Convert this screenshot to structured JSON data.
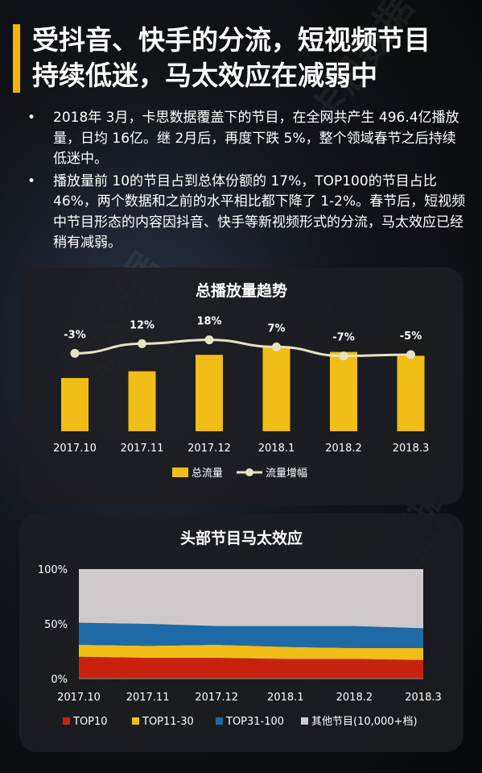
{
  "title": {
    "line1": "受抖音、快手的分流，短视频节目",
    "line2": "持续低迷，马太效应在减弱中"
  },
  "bullets": [
    "2018年 3月，卡思数据覆盖下的节目，在全网共产生 496.4亿播放量，日均 16亿。继 2月后，再度下跌 5%，整个领域春节之后持续低迷中。",
    "播放量前 10的节目占到总体份额的 17%，TOP100的节目占比 46%，两个数据和之前的水平相比都下降了 1-2%。春节后，短视频中节目形态的内容因抖音、快手等新视频形式的分流，马太效应已经稍有减弱。"
  ],
  "bullet_symbol": "•",
  "watermarks": [
    "卡思数据",
    "CAASDATA"
  ],
  "colors": {
    "accent": "#f5b400",
    "bar": "#f0be16",
    "line": "#e6e2c4",
    "top10": "#c8220f",
    "top11_30": "#f0be16",
    "top31_100": "#1e6aa6",
    "others": "#cfc9cc"
  },
  "chart_data": [
    {
      "type": "bar",
      "title": "总播放量趋势",
      "categories": [
        "2017.10",
        "2017.11",
        "2017.12",
        "2018.1",
        "2018.2",
        "2018.3"
      ],
      "series": [
        {
          "name": "总流量",
          "values": [
            55,
            62,
            79,
            88,
            82,
            78
          ]
        },
        {
          "name": "流量增幅",
          "type": "line",
          "values": [
            -3,
            12,
            18,
            7,
            -7,
            -5
          ],
          "labels": [
            "-3%",
            "12%",
            "18%",
            "7%",
            "-7%",
            "-5%"
          ]
        }
      ],
      "legend": "bottom",
      "grid": false
    },
    {
      "type": "area",
      "stacked": true,
      "title": "头部节目马太效应",
      "categories": [
        "2017.10",
        "2017.11",
        "2017.12",
        "2018.1",
        "2018.2",
        "2018.3"
      ],
      "yticks": [
        "100%",
        "50%",
        "0%"
      ],
      "ylim": [
        0,
        100
      ],
      "series": [
        {
          "name": "TOP10",
          "values": [
            20,
            19,
            19,
            18,
            18,
            17
          ]
        },
        {
          "name": "TOP11-30",
          "values": [
            11,
            11,
            12,
            11,
            10,
            11
          ]
        },
        {
          "name": "TOP31-100",
          "values": [
            20,
            20,
            17,
            19,
            20,
            18
          ]
        },
        {
          "name": "其他节目(10,000+档)",
          "values": [
            49,
            50,
            52,
            52,
            52,
            54
          ]
        }
      ],
      "legend": "bottom",
      "grid": false
    }
  ]
}
